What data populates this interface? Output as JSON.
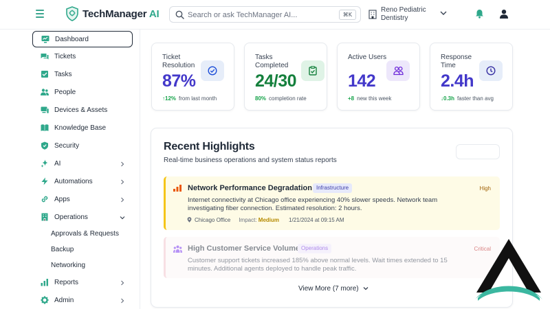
{
  "app": {
    "name": "TechManager",
    "name_suffix": "AI"
  },
  "search": {
    "placeholder": "Search or ask TechManager AI...",
    "shortcut": "⌘K"
  },
  "org": {
    "name": "Reno Pediatric Dentistry"
  },
  "sidebar": {
    "items": [
      {
        "label": "Dashboard",
        "icon": "dashboard-icon",
        "active": true
      },
      {
        "label": "Tickets",
        "icon": "tickets-icon"
      },
      {
        "label": "Tasks",
        "icon": "tasks-icon"
      },
      {
        "label": "People",
        "icon": "people-icon"
      },
      {
        "label": "Devices & Assets",
        "icon": "devices-icon"
      },
      {
        "label": "Knowledge Base",
        "icon": "book-icon"
      },
      {
        "label": "Security",
        "icon": "shield-icon"
      },
      {
        "label": "AI",
        "icon": "ai-icon",
        "chevron": "right"
      },
      {
        "label": "Automations",
        "icon": "bolt-icon",
        "chevron": "right"
      },
      {
        "label": "Apps",
        "icon": "link-icon",
        "chevron": "right"
      },
      {
        "label": "Operations",
        "icon": "building-icon",
        "chevron": "down"
      },
      {
        "label": "Reports",
        "icon": "bar-chart-icon",
        "chevron": "right"
      },
      {
        "label": "Admin",
        "icon": "gear-icon",
        "chevron": "right"
      }
    ],
    "operations_sub": [
      "Approvals & Requests",
      "Backup",
      "Networking"
    ]
  },
  "stats": [
    {
      "title": "Ticket Resolution",
      "value": "87%",
      "delta": "↑12%",
      "note": "from last month",
      "value_color": "#4338ca",
      "icon": "check-circle-icon"
    },
    {
      "title": "Tasks Completed",
      "value": "24/30",
      "delta": "80%",
      "note": "completion rate",
      "value_color": "#15803d",
      "icon": "clipboard-check-icon"
    },
    {
      "title": "Active Users",
      "value": "142",
      "delta": "+8",
      "note": "new this week",
      "value_color": "#4338ca",
      "icon": "users-icon"
    },
    {
      "title": "Response Time",
      "value": "2.4h",
      "delta": "↓0.3h",
      "note": "faster than avg",
      "value_color": "#4338ca",
      "icon": "clock-icon"
    }
  ],
  "highlights": {
    "title": "Recent Highlights",
    "subtitle": "Real-time business operations and system status reports",
    "items": [
      {
        "title": "Network Performance Degradation",
        "tag": "Infrastructure",
        "severity": "High",
        "body": "Internet connectivity at Chicago office experiencing 40% slower speeds. Network team investigating fiber connection. Estimated resolution: 2 hours.",
        "location": "Chicago Office",
        "impact_label": "Impact:",
        "impact": "Medium",
        "timestamp": "1/21/2024 at 09:15 AM",
        "accent": "#f5c518"
      },
      {
        "title": "High Customer Service Volume",
        "tag": "Operations",
        "severity": "Critical",
        "body": "Customer support tickets increased 185% above normal levels. Wait times extended to 15 minutes. Additional agents deployed to handle peak traffic.",
        "accent": "#f3c7cf"
      }
    ],
    "view_more": "View More (7 more)"
  },
  "colors": {
    "brand": "#2fa88b",
    "accent_indigo": "#4338ca",
    "success": "#15803d"
  }
}
